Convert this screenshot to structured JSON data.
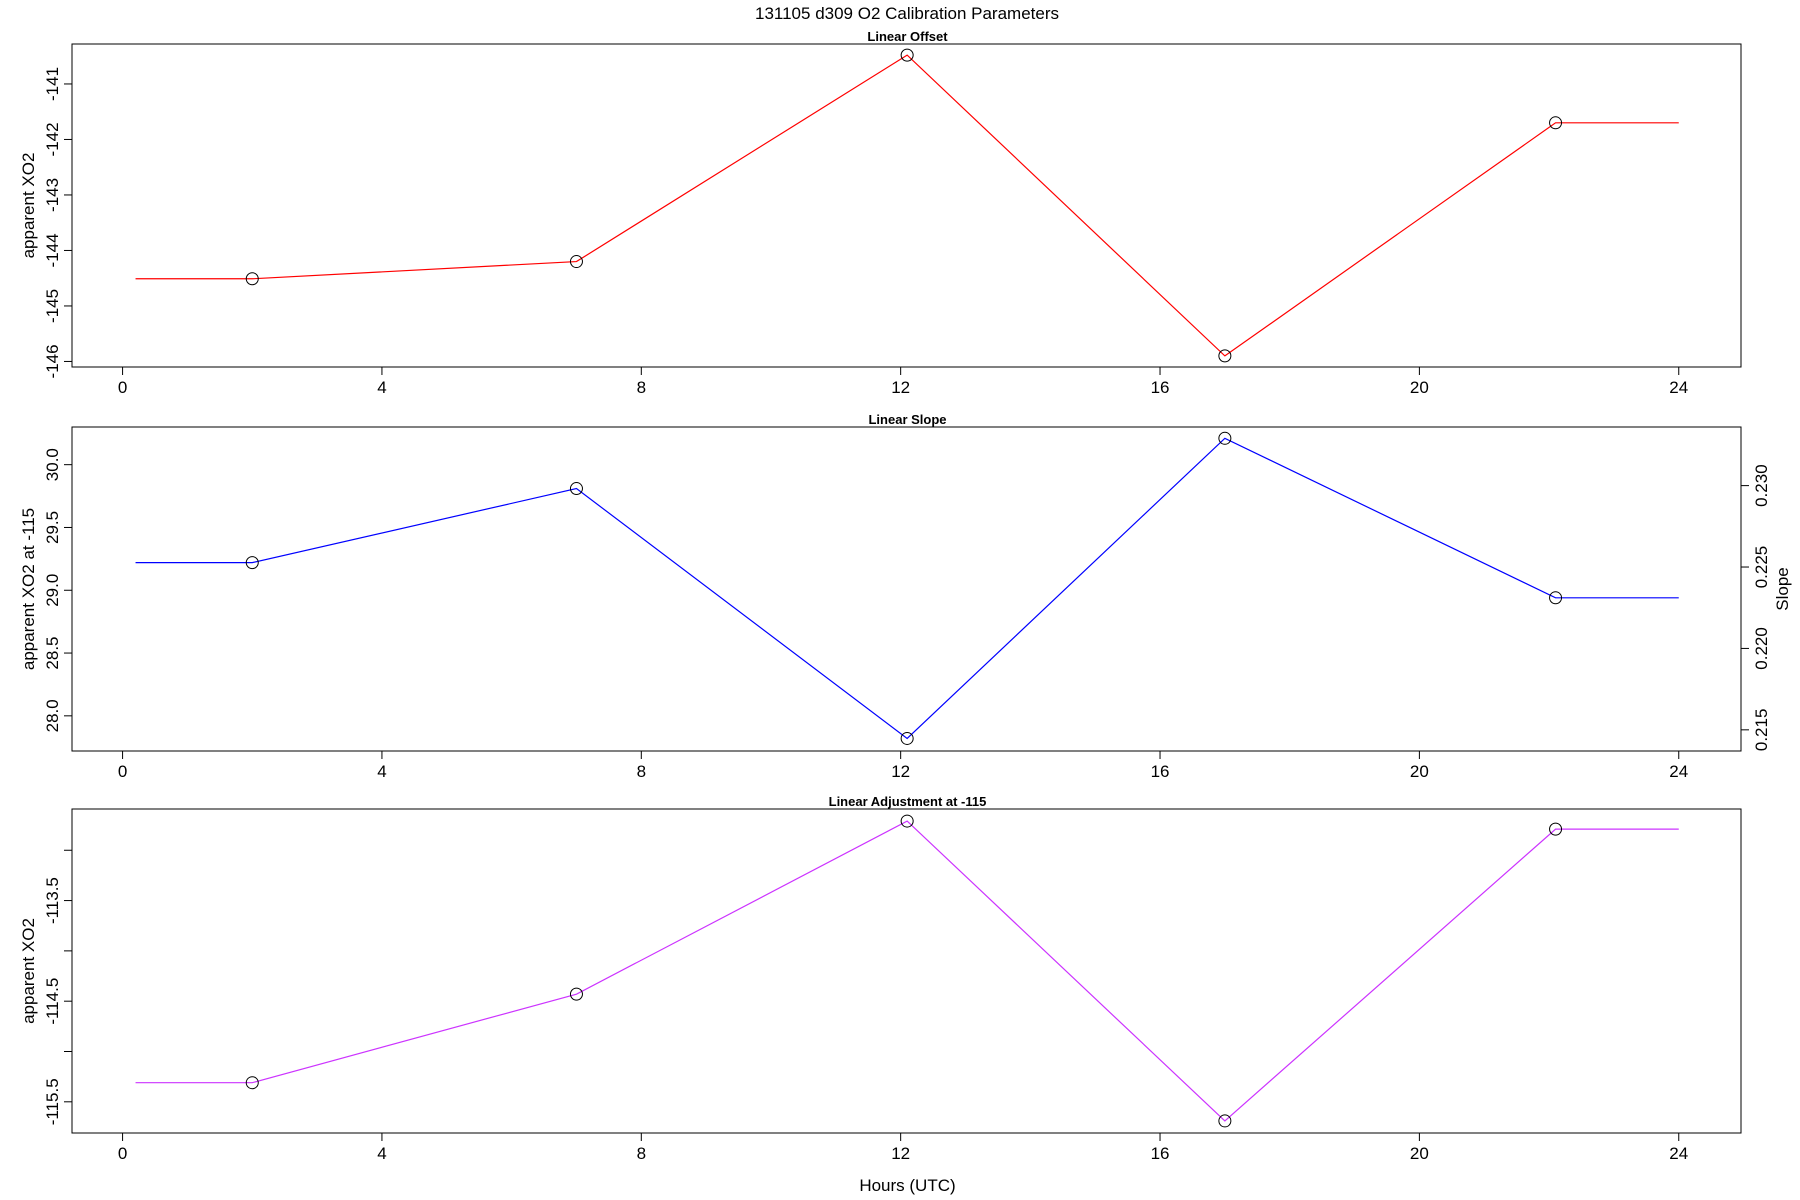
{
  "title": "131105   d309   O2 Calibration Parameters",
  "chart_data": [
    {
      "type": "line",
      "title": "Linear Offset",
      "ylabel": "apparent XO2",
      "color": "#ff0000",
      "x": [
        0.2,
        2,
        7,
        12.1,
        17,
        22.1,
        24
      ],
      "values": [
        -144.51,
        -144.51,
        -144.2,
        -140.48,
        -145.9,
        -141.7,
        -141.7
      ],
      "xlim": [
        -0.78,
        24.96
      ],
      "xticks": [
        0,
        4,
        8,
        12,
        16,
        20,
        24
      ],
      "ylim": [
        -146.1,
        -140.28
      ],
      "yticks": [
        -146,
        -145,
        -144,
        -143,
        -142,
        -141
      ]
    },
    {
      "type": "line",
      "title": "Linear Slope",
      "ylabel": "apparent XO2 at -115",
      "y2label": "Slope",
      "color": "#0000ff",
      "x": [
        0.2,
        2,
        7,
        12.1,
        17,
        22.1,
        24
      ],
      "values": [
        29.22,
        29.22,
        29.81,
        27.82,
        30.21,
        28.94,
        28.94
      ],
      "xlim": [
        -0.78,
        24.96
      ],
      "xticks": [
        0,
        4,
        8,
        12,
        16,
        20,
        24
      ],
      "ylim": [
        27.72,
        30.3
      ],
      "yticks": [
        {
          "value": 28,
          "label": "28.0"
        },
        28.5,
        {
          "value": 29,
          "label": "29.0"
        },
        29.5,
        {
          "value": 30,
          "label": "30.0"
        }
      ],
      "y2lim": [
        0.2137,
        0.2336
      ],
      "y2ticks": [
        0.215,
        {
          "value": 0.22,
          "label": "0.220"
        },
        0.225,
        {
          "value": 0.23,
          "label": "0.230"
        }
      ]
    },
    {
      "type": "line",
      "title": "Linear Adjustment at -115",
      "ylabel": "apparent XO2",
      "xlabel": "Hours (UTC)",
      "color": "#cc33ff",
      "x": [
        0.2,
        2,
        7,
        12.1,
        17,
        22.1,
        24
      ],
      "values": [
        -115.31,
        -115.31,
        -114.43,
        -112.71,
        -115.69,
        -112.79,
        -112.79
      ],
      "xlim": [
        -0.78,
        24.96
      ],
      "xticks": [
        0,
        4,
        8,
        12,
        16,
        20,
        24
      ],
      "ylim": [
        -115.81,
        -112.59
      ],
      "yticks": [
        -115.5,
        -114.5,
        -113.5
      ],
      "yminorticks": [
        -115,
        -114,
        -113
      ]
    }
  ]
}
